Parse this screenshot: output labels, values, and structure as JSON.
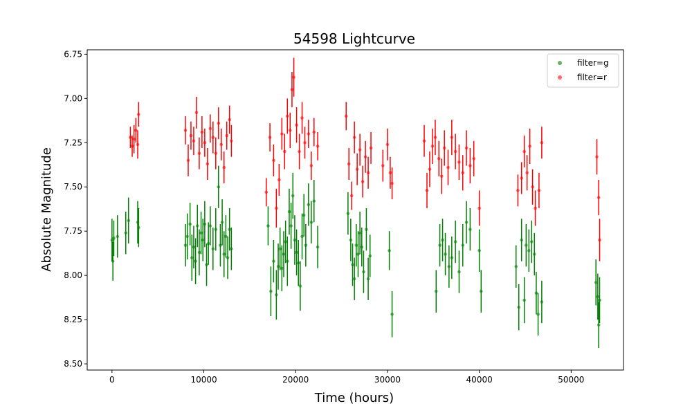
{
  "chart_data": {
    "type": "scatter",
    "title": "54598 Lightcurve",
    "xlabel": "Time (hours)",
    "ylabel": "Absolute Magnitude",
    "xlim": [
      -2700,
      55700
    ],
    "ylim": [
      8.535,
      6.725
    ],
    "y_inverted": true,
    "xticks": [
      0,
      10000,
      20000,
      30000,
      40000,
      50000
    ],
    "xtick_labels": [
      "0",
      "10000",
      "20000",
      "30000",
      "40000",
      "50000"
    ],
    "yticks": [
      6.75,
      7.0,
      7.25,
      7.5,
      7.75,
      8.0,
      8.25,
      8.5
    ],
    "ytick_labels": [
      "6.75",
      "7.00",
      "7.25",
      "7.50",
      "7.75",
      "8.00",
      "8.25",
      "8.50"
    ],
    "grid": false,
    "legend_position": "top-right",
    "error_bars": true,
    "series": [
      {
        "name": "filter=g",
        "color": "#008000",
        "points": [
          [
            0,
            7.8,
            0.12
          ],
          [
            100,
            7.92,
            0.11
          ],
          [
            200,
            7.79,
            0.1
          ],
          [
            600,
            7.78,
            0.12
          ],
          [
            1500,
            7.76,
            0.12
          ],
          [
            1800,
            7.69,
            0.13
          ],
          [
            2800,
            7.7,
            0.12
          ],
          [
            2900,
            7.73,
            0.11
          ],
          [
            8000,
            7.83,
            0.12
          ],
          [
            8200,
            7.78,
            0.13
          ],
          [
            8500,
            7.71,
            0.12
          ],
          [
            8700,
            7.9,
            0.13
          ],
          [
            8900,
            7.84,
            0.12
          ],
          [
            9100,
            7.92,
            0.13
          ],
          [
            9300,
            7.72,
            0.12
          ],
          [
            9500,
            7.87,
            0.13
          ],
          [
            9700,
            7.76,
            0.12
          ],
          [
            9900,
            7.8,
            0.12
          ],
          [
            10100,
            7.71,
            0.13
          ],
          [
            10300,
            7.94,
            0.12
          ],
          [
            10500,
            7.82,
            0.12
          ],
          [
            10700,
            7.72,
            0.11
          ],
          [
            11000,
            7.85,
            0.12
          ],
          [
            11300,
            7.74,
            0.12
          ],
          [
            11600,
            7.5,
            0.12
          ],
          [
            11800,
            7.83,
            0.12
          ],
          [
            12000,
            7.7,
            0.13
          ],
          [
            12200,
            7.88,
            0.13
          ],
          [
            12400,
            7.78,
            0.12
          ],
          [
            12600,
            7.9,
            0.12
          ],
          [
            12800,
            7.74,
            0.12
          ],
          [
            13000,
            7.85,
            0.12
          ],
          [
            17000,
            7.72,
            0.11
          ],
          [
            17300,
            8.09,
            0.14
          ],
          [
            17600,
            7.92,
            0.12
          ],
          [
            17900,
            8.11,
            0.14
          ],
          [
            18100,
            7.95,
            0.13
          ],
          [
            18300,
            7.85,
            0.12
          ],
          [
            18500,
            7.96,
            0.13
          ],
          [
            18700,
            7.88,
            0.13
          ],
          [
            18900,
            7.81,
            0.12
          ],
          [
            19100,
            7.92,
            0.14
          ],
          [
            19300,
            7.64,
            0.13
          ],
          [
            19500,
            7.72,
            0.13
          ],
          [
            19700,
            7.55,
            0.13
          ],
          [
            19900,
            7.8,
            0.14
          ],
          [
            20100,
            7.87,
            0.13
          ],
          [
            20300,
            7.93,
            0.13
          ],
          [
            20500,
            8.06,
            0.14
          ],
          [
            20700,
            7.78,
            0.13
          ],
          [
            20900,
            7.66,
            0.12
          ],
          [
            21100,
            7.83,
            0.12
          ],
          [
            21400,
            7.6,
            0.12
          ],
          [
            21700,
            7.7,
            0.12
          ],
          [
            22000,
            7.58,
            0.12
          ],
          [
            22400,
            7.84,
            0.12
          ],
          [
            25700,
            7.65,
            0.12
          ],
          [
            26000,
            7.8,
            0.12
          ],
          [
            26200,
            7.94,
            0.12
          ],
          [
            26400,
            8.02,
            0.12
          ],
          [
            26600,
            7.83,
            0.12
          ],
          [
            26800,
            7.88,
            0.13
          ],
          [
            27000,
            7.76,
            0.12
          ],
          [
            27200,
            7.84,
            0.11
          ],
          [
            27400,
            7.98,
            0.12
          ],
          [
            27700,
            7.74,
            0.12
          ],
          [
            27900,
            8.02,
            0.12
          ],
          [
            28100,
            7.89,
            0.12
          ],
          [
            30200,
            7.86,
            0.11
          ],
          [
            30500,
            8.22,
            0.13
          ],
          [
            35300,
            8.09,
            0.12
          ],
          [
            35700,
            7.83,
            0.12
          ],
          [
            36000,
            7.8,
            0.12
          ],
          [
            36300,
            7.88,
            0.12
          ],
          [
            36700,
            7.95,
            0.12
          ],
          [
            37000,
            7.9,
            0.12
          ],
          [
            37400,
            7.81,
            0.12
          ],
          [
            37800,
            7.98,
            0.12
          ],
          [
            38200,
            7.83,
            0.12
          ],
          [
            38600,
            7.7,
            0.12
          ],
          [
            39000,
            7.74,
            0.12
          ],
          [
            40000,
            7.86,
            0.12
          ],
          [
            40200,
            8.09,
            0.12
          ],
          [
            44000,
            7.95,
            0.12
          ],
          [
            44300,
            8.18,
            0.13
          ],
          [
            44600,
            7.8,
            0.12
          ],
          [
            44900,
            8.14,
            0.13
          ],
          [
            45100,
            7.83,
            0.12
          ],
          [
            45400,
            7.86,
            0.12
          ],
          [
            45700,
            7.81,
            0.12
          ],
          [
            46000,
            7.88,
            0.12
          ],
          [
            46200,
            8.1,
            0.12
          ],
          [
            46400,
            8.22,
            0.12
          ],
          [
            46800,
            8.15,
            0.12
          ],
          [
            52700,
            8.04,
            0.13
          ],
          [
            52900,
            8.12,
            0.13
          ],
          [
            53000,
            8.28,
            0.13
          ],
          [
            53100,
            8.14,
            0.13
          ]
        ]
      },
      {
        "name": "filter=r",
        "color": "#ff0000",
        "points": [
          [
            2000,
            7.22,
            0.06
          ],
          [
            2200,
            7.27,
            0.06
          ],
          [
            2400,
            7.23,
            0.08
          ],
          [
            2600,
            7.18,
            0.07
          ],
          [
            2800,
            7.26,
            0.08
          ],
          [
            2900,
            7.09,
            0.07
          ],
          [
            8000,
            7.18,
            0.08
          ],
          [
            8300,
            7.35,
            0.09
          ],
          [
            8600,
            7.21,
            0.08
          ],
          [
            8900,
            7.24,
            0.08
          ],
          [
            9200,
            7.08,
            0.09
          ],
          [
            9500,
            7.31,
            0.09
          ],
          [
            9800,
            7.19,
            0.09
          ],
          [
            10100,
            7.25,
            0.08
          ],
          [
            10400,
            7.37,
            0.09
          ],
          [
            10700,
            7.17,
            0.08
          ],
          [
            11000,
            7.22,
            0.09
          ],
          [
            11300,
            7.31,
            0.09
          ],
          [
            11600,
            7.14,
            0.09
          ],
          [
            11900,
            7.26,
            0.09
          ],
          [
            12200,
            7.39,
            0.09
          ],
          [
            12500,
            7.21,
            0.08
          ],
          [
            12800,
            7.12,
            0.08
          ],
          [
            13000,
            7.24,
            0.09
          ],
          [
            16800,
            7.53,
            0.08
          ],
          [
            17200,
            7.22,
            0.08
          ],
          [
            17600,
            7.35,
            0.09
          ],
          [
            17900,
            7.62,
            0.11
          ],
          [
            18200,
            7.46,
            0.09
          ],
          [
            18500,
            7.2,
            0.09
          ],
          [
            18800,
            7.3,
            0.1
          ],
          [
            19100,
            7.1,
            0.1
          ],
          [
            19400,
            7.18,
            0.1
          ],
          [
            19600,
            6.95,
            0.1
          ],
          [
            19800,
            6.88,
            0.11
          ],
          [
            20100,
            7.15,
            0.1
          ],
          [
            20400,
            7.3,
            0.1
          ],
          [
            20700,
            7.11,
            0.09
          ],
          [
            21000,
            7.25,
            0.09
          ],
          [
            21400,
            7.2,
            0.08
          ],
          [
            21700,
            7.38,
            0.08
          ],
          [
            22000,
            7.19,
            0.08
          ],
          [
            22400,
            7.27,
            0.08
          ],
          [
            25500,
            7.1,
            0.08
          ],
          [
            25800,
            7.37,
            0.09
          ],
          [
            26100,
            7.55,
            0.08
          ],
          [
            26400,
            7.22,
            0.09
          ],
          [
            26700,
            7.4,
            0.09
          ],
          [
            27000,
            7.29,
            0.09
          ],
          [
            27300,
            7.47,
            0.09
          ],
          [
            27600,
            7.33,
            0.09
          ],
          [
            27900,
            7.42,
            0.09
          ],
          [
            28200,
            7.28,
            0.09
          ],
          [
            29500,
            7.38,
            0.09
          ],
          [
            30000,
            7.26,
            0.09
          ],
          [
            30300,
            7.42,
            0.09
          ],
          [
            30500,
            7.48,
            0.09
          ],
          [
            34000,
            7.24,
            0.09
          ],
          [
            34300,
            7.52,
            0.1
          ],
          [
            34600,
            7.4,
            0.1
          ],
          [
            34900,
            7.27,
            0.1
          ],
          [
            35200,
            7.22,
            0.1
          ],
          [
            35600,
            7.34,
            0.1
          ],
          [
            35900,
            7.44,
            0.1
          ],
          [
            36200,
            7.28,
            0.1
          ],
          [
            36600,
            7.39,
            0.1
          ],
          [
            37000,
            7.22,
            0.1
          ],
          [
            37400,
            7.3,
            0.1
          ],
          [
            37800,
            7.36,
            0.1
          ],
          [
            38200,
            7.42,
            0.1
          ],
          [
            38600,
            7.28,
            0.1
          ],
          [
            39000,
            7.38,
            0.1
          ],
          [
            39400,
            7.34,
            0.1
          ],
          [
            40000,
            7.62,
            0.1
          ],
          [
            44200,
            7.52,
            0.09
          ],
          [
            44600,
            7.45,
            0.09
          ],
          [
            44900,
            7.3,
            0.09
          ],
          [
            45200,
            7.42,
            0.1
          ],
          [
            45500,
            7.27,
            0.1
          ],
          [
            45800,
            7.5,
            0.1
          ],
          [
            46100,
            7.62,
            0.1
          ],
          [
            46500,
            7.52,
            0.1
          ],
          [
            46800,
            7.25,
            0.09
          ],
          [
            52800,
            7.33,
            0.1
          ],
          [
            53000,
            7.56,
            0.1
          ],
          [
            53100,
            7.8,
            0.12
          ]
        ]
      }
    ]
  }
}
